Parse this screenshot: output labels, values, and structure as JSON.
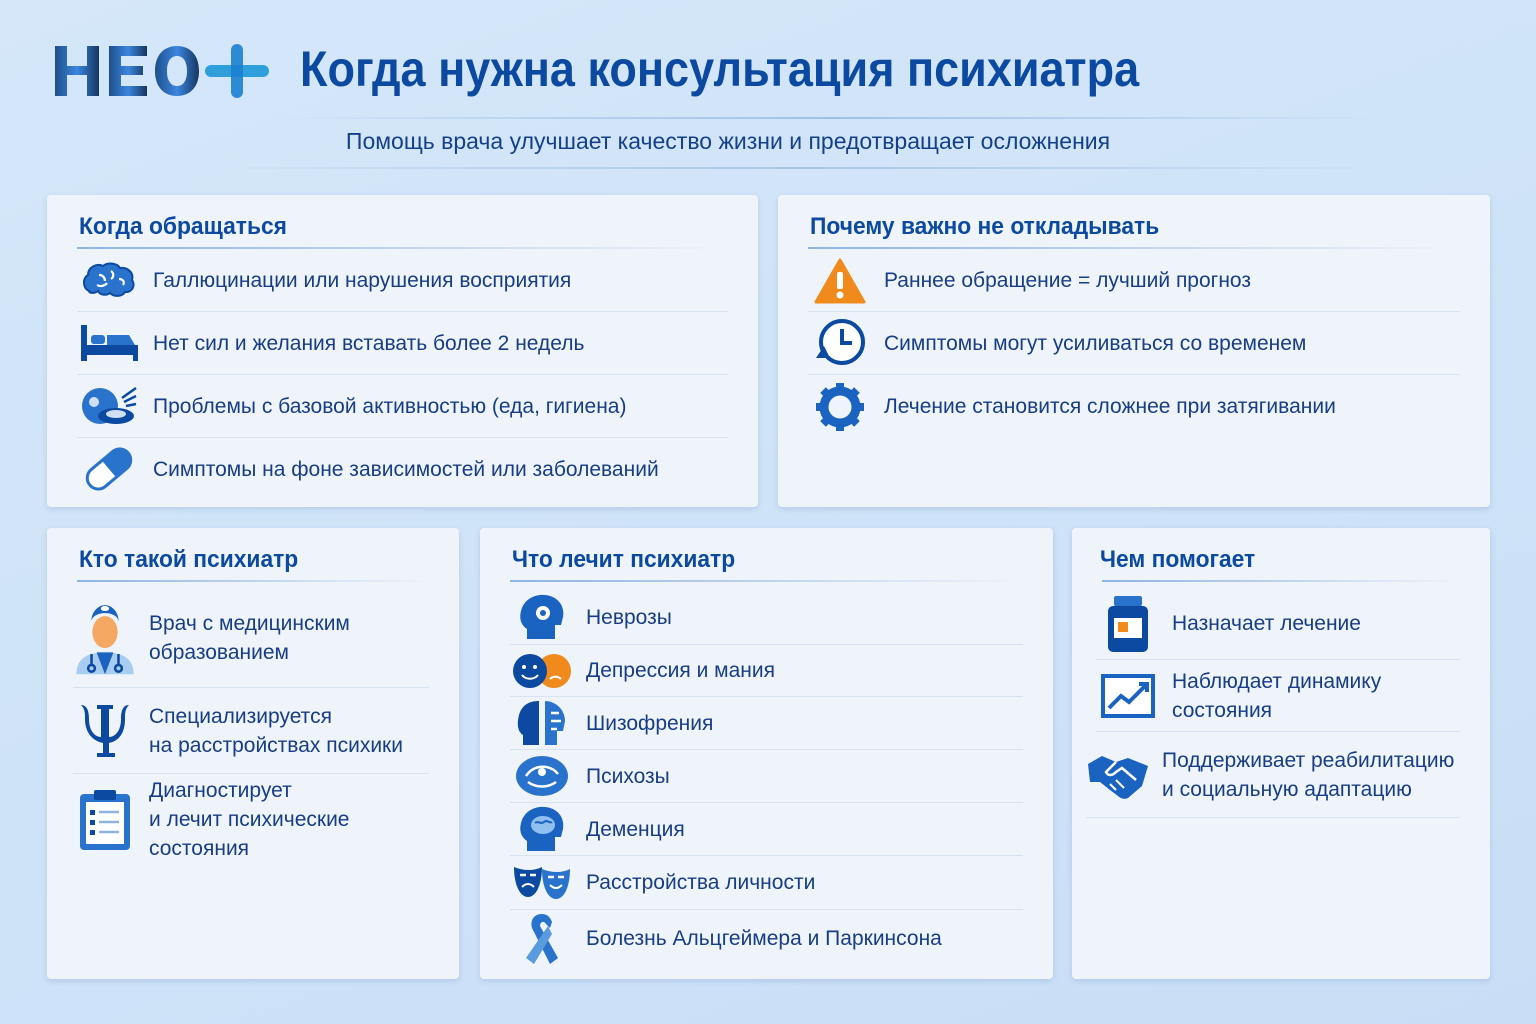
{
  "header": {
    "logo_text": "НЕО+",
    "title": "Когда нужна консультация психиатра",
    "subtitle": "Помощь врача улучшает качество жизни и предотвращает осложнения"
  },
  "when": {
    "title": "Когда обращаться",
    "items": [
      {
        "icon": "brain-icon",
        "text": "Галлюцинации или нарушения восприятия"
      },
      {
        "icon": "bed-icon",
        "text": "Нет сил и желания вставать более 2 недель"
      },
      {
        "icon": "food-hygiene-icon",
        "text": "Проблемы с базовой активностью (еда, гигиена)"
      },
      {
        "icon": "pill-icon",
        "text": "Симптомы на фоне зависимостей или заболеваний"
      }
    ]
  },
  "why": {
    "title": "Почему важно не откладывать",
    "items": [
      {
        "icon": "warning-icon",
        "text": "Раннее обращение = лучший прогноз"
      },
      {
        "icon": "clock-icon",
        "text": "Симптомы могут усиливаться со временем"
      },
      {
        "icon": "gear-icon",
        "text": "Лечение становится сложнее при затягивании"
      }
    ]
  },
  "who": {
    "title": "Кто такой психиатр",
    "items": [
      {
        "icon": "doctor-icon",
        "line1": "Врач с медицинским",
        "line2": "образованием"
      },
      {
        "icon": "psi-icon",
        "line1": "Специализируется",
        "line2": "на расстройствах психики"
      },
      {
        "icon": "clipboard-icon",
        "line1": "Диагностирует",
        "line2": "и лечит психические состояния"
      }
    ]
  },
  "treats": {
    "title": "Что лечит психиатр",
    "items": [
      {
        "icon": "head-gear-icon",
        "text": "Неврозы"
      },
      {
        "icon": "mood-faces-icon",
        "text": "Депрессия и мания"
      },
      {
        "icon": "split-head-icon",
        "text": "Шизофрения"
      },
      {
        "icon": "confused-head-icon",
        "text": "Психозы"
      },
      {
        "icon": "brain-head-icon",
        "text": "Деменция"
      },
      {
        "icon": "theater-masks-icon",
        "text": "Расстройства личности"
      },
      {
        "icon": "ribbon-icon",
        "text": "Болезнь Альцгеймера и Паркинсона"
      }
    ]
  },
  "helps": {
    "title": "Чем помогает",
    "items": [
      {
        "icon": "medicine-bottle-icon",
        "line1": "Назначает лечение",
        "line2": ""
      },
      {
        "icon": "chart-icon",
        "line1": "Наблюдает динамику состояния",
        "line2": ""
      },
      {
        "icon": "handshake-icon",
        "line1": "Поддерживает реабилитацию",
        "line2": "и социальную адаптацию"
      }
    ]
  },
  "colors": {
    "primary": "#0b4aa0",
    "text": "#173d86",
    "accent_orange": "#f08a1c",
    "background": "#d3e6f8",
    "card": "#eff4fa"
  }
}
